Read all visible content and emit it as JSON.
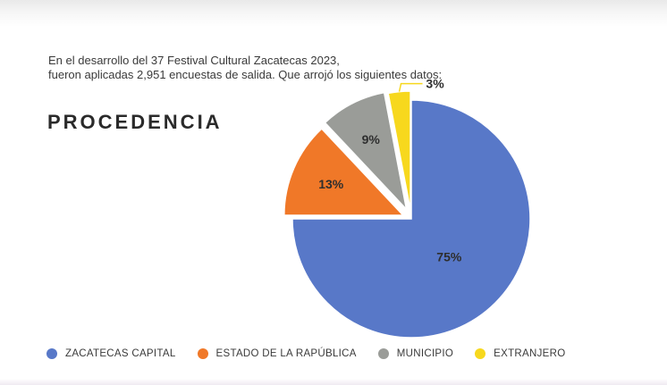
{
  "intro": {
    "line1": "En el desarrollo del 37 Festival Cultural Zacatecas 2023,",
    "line2": "fueron aplicadas 2,951 encuestas de salida. Que arrojó los siguientes datos:"
  },
  "chart_data": {
    "type": "pie",
    "title": "PROCEDENCIA",
    "categories": [
      "ZACATECAS CAPITAL",
      "ESTADO DE LA RAPÚBLICA",
      "MUNICIPIO",
      "EXTRANJERO"
    ],
    "values": [
      75,
      13,
      9,
      3
    ],
    "labels": [
      "75%",
      "13%",
      "9%",
      "3%"
    ],
    "colors": [
      "#5878c8",
      "#f07828",
      "#9a9c98",
      "#f7d81d"
    ],
    "legend_position": "bottom"
  }
}
